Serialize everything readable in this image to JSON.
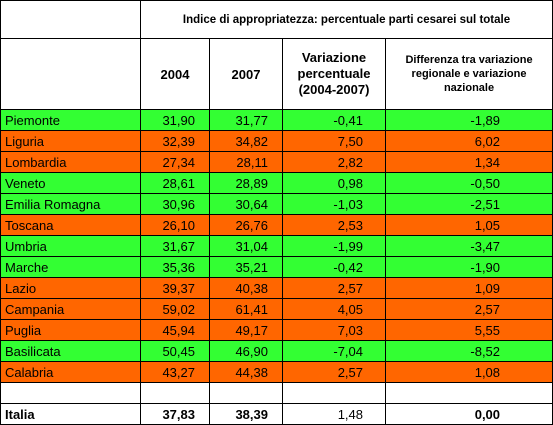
{
  "header": {
    "group_title": "Indice di appropriatezza: percentuale parti cesarei sul totale",
    "col_2004": "2004",
    "col_2007": "2007",
    "col_variation": "Variazione percentuale (2004-2007)",
    "col_difference": "Differenza tra variazione regionale e variazione nazionale"
  },
  "colors": {
    "above": "#ff6600",
    "below": "#33ff33"
  },
  "rows": [
    {
      "region": "Piemonte",
      "y2004": "31,90",
      "y2007": "31,77",
      "variation": "-0,41",
      "difference": "-1,89",
      "status": "green"
    },
    {
      "region": "Liguria",
      "y2004": "32,39",
      "y2007": "34,82",
      "variation": "7,50",
      "difference": "6,02",
      "status": "orange"
    },
    {
      "region": "Lombardia",
      "y2004": "27,34",
      "y2007": "28,11",
      "variation": "2,82",
      "difference": "1,34",
      "status": "orange"
    },
    {
      "region": "Veneto",
      "y2004": "28,61",
      "y2007": "28,89",
      "variation": "0,98",
      "difference": "-0,50",
      "status": "green"
    },
    {
      "region": "Emilia Romagna",
      "y2004": "30,96",
      "y2007": "30,64",
      "variation": "-1,03",
      "difference": "-2,51",
      "status": "green"
    },
    {
      "region": "Toscana",
      "y2004": "26,10",
      "y2007": "26,76",
      "variation": "2,53",
      "difference": "1,05",
      "status": "orange"
    },
    {
      "region": "Umbria",
      "y2004": "31,67",
      "y2007": "31,04",
      "variation": "-1,99",
      "difference": "-3,47",
      "status": "green"
    },
    {
      "region": "Marche",
      "y2004": "35,36",
      "y2007": "35,21",
      "variation": "-0,42",
      "difference": "-1,90",
      "status": "green"
    },
    {
      "region": "Lazio",
      "y2004": "39,37",
      "y2007": "40,38",
      "variation": "2,57",
      "difference": "1,09",
      "status": "orange"
    },
    {
      "region": "Campania",
      "y2004": "59,02",
      "y2007": "61,41",
      "variation": "4,05",
      "difference": "2,57",
      "status": "orange"
    },
    {
      "region": "Puglia",
      "y2004": "45,94",
      "y2007": "49,17",
      "variation": "7,03",
      "difference": "5,55",
      "status": "orange"
    },
    {
      "region": "Basilicata",
      "y2004": "50,45",
      "y2007": "46,90",
      "variation": "-7,04",
      "difference": "-8,52",
      "status": "green"
    },
    {
      "region": "Calabria",
      "y2004": "43,27",
      "y2007": "44,38",
      "variation": "2,57",
      "difference": "1,08",
      "status": "orange"
    }
  ],
  "total": {
    "region": "Italia",
    "y2004": "37,83",
    "y2007": "38,39",
    "variation": "1,48",
    "difference": "0,00"
  }
}
